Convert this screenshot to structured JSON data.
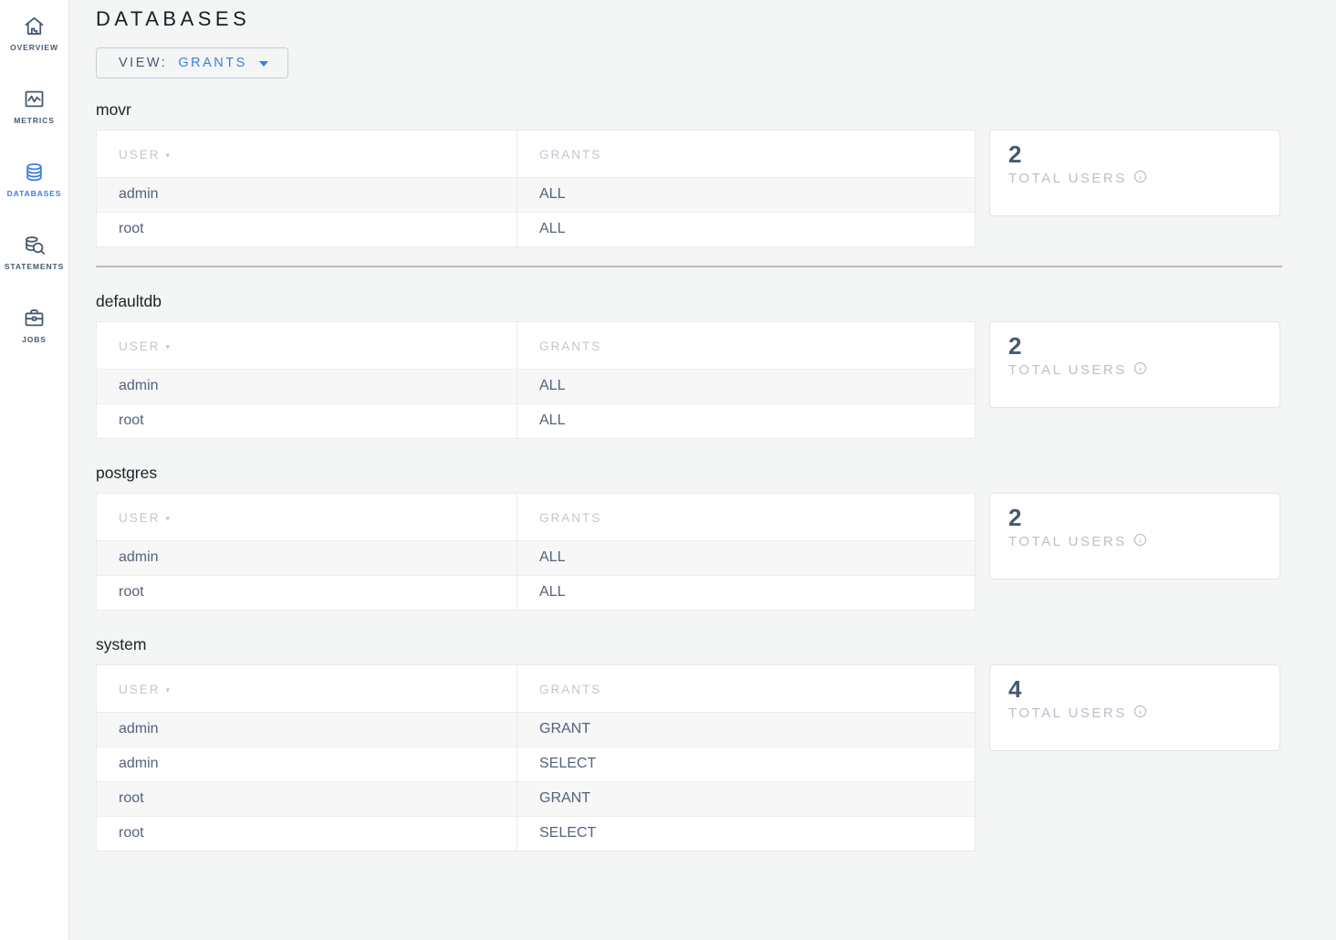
{
  "sidebar": {
    "active_color": "#3e7ce0",
    "inactive_color": "#475872",
    "items": [
      {
        "label": "OVERVIEW",
        "icon": "home-icon",
        "active": false
      },
      {
        "label": "METRICS",
        "icon": "metrics-icon",
        "active": false
      },
      {
        "label": "DATABASES",
        "icon": "databases-icon",
        "active": true
      },
      {
        "label": "STATEMENTS",
        "icon": "statements-icon",
        "active": false
      },
      {
        "label": "JOBS",
        "icon": "jobs-icon",
        "active": false
      }
    ]
  },
  "header": {
    "title": "DATABASES"
  },
  "view_selector": {
    "label": "VIEW:",
    "value": "GRANTS",
    "caret_icon": "chevron-down-icon"
  },
  "table": {
    "columns": [
      "USER",
      "GRANTS"
    ],
    "sorted_column": "USER"
  },
  "summary_card": {
    "label": "TOTAL USERS",
    "info_icon": "info-icon"
  },
  "sections": [
    {
      "name": "movr",
      "total_users": "2",
      "rows": [
        {
          "user": "admin",
          "grants": "ALL"
        },
        {
          "user": "root",
          "grants": "ALL"
        }
      ],
      "divider_after": true
    },
    {
      "name": "defaultdb",
      "total_users": "2",
      "rows": [
        {
          "user": "admin",
          "grants": "ALL"
        },
        {
          "user": "root",
          "grants": "ALL"
        }
      ],
      "divider_after": false
    },
    {
      "name": "postgres",
      "total_users": "2",
      "rows": [
        {
          "user": "admin",
          "grants": "ALL"
        },
        {
          "user": "root",
          "grants": "ALL"
        }
      ],
      "divider_after": false
    },
    {
      "name": "system",
      "total_users": "4",
      "rows": [
        {
          "user": "admin",
          "grants": "GRANT"
        },
        {
          "user": "admin",
          "grants": "SELECT"
        },
        {
          "user": "root",
          "grants": "GRANT"
        },
        {
          "user": "root",
          "grants": "SELECT"
        }
      ],
      "divider_after": false
    }
  ]
}
